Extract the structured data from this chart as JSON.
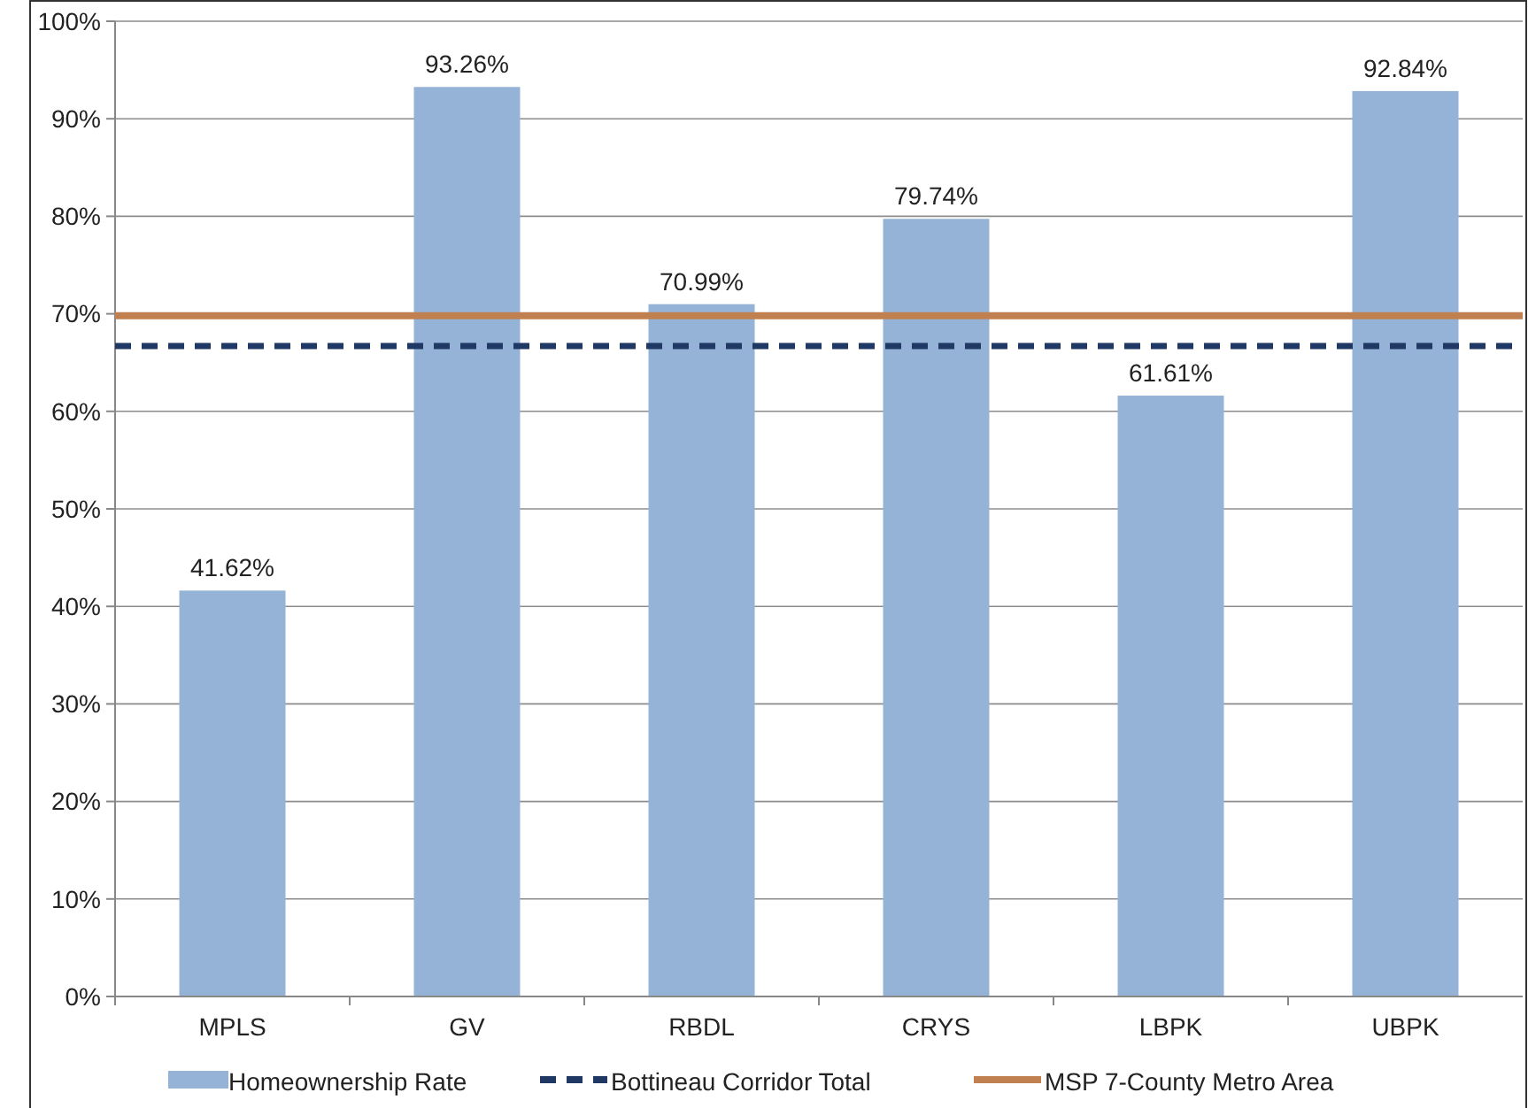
{
  "chart_data": {
    "type": "bar",
    "categories": [
      "MPLS",
      "GV",
      "RBDL",
      "CRYS",
      "LBPK",
      "UBPK"
    ],
    "series": [
      {
        "name": "Homeownership Rate",
        "color": "#95b3d7",
        "values": [
          41.62,
          93.26,
          70.99,
          79.74,
          61.61,
          92.84
        ],
        "value_labels": [
          "41.62%",
          "93.26%",
          "70.99%",
          "79.74%",
          "61.61%",
          "92.84%"
        ]
      }
    ],
    "ylim": [
      0,
      100
    ],
    "yticks": [
      {
        "value": 0,
        "label": "0%"
      },
      {
        "value": 10,
        "label": "10%"
      },
      {
        "value": 20,
        "label": "20%"
      },
      {
        "value": 30,
        "label": "30%"
      },
      {
        "value": 40,
        "label": "40%"
      },
      {
        "value": 50,
        "label": "50%"
      },
      {
        "value": 60,
        "label": "60%"
      },
      {
        "value": 70,
        "label": "70%"
      },
      {
        "value": 80,
        "label": "80%"
      },
      {
        "value": 90,
        "label": "90%"
      },
      {
        "value": 100,
        "label": "100%"
      }
    ],
    "ref_lines": [
      {
        "axis": "y",
        "value": 66.7,
        "label": "Bottineau Corridor Total",
        "color": "#1f3864",
        "line_style": "dashed"
      },
      {
        "axis": "y",
        "value": 69.8,
        "label": "MSP 7-County Metro Area",
        "color": "#c0804f",
        "line_style": "solid"
      }
    ],
    "grid": "y",
    "legend": "bottom"
  }
}
